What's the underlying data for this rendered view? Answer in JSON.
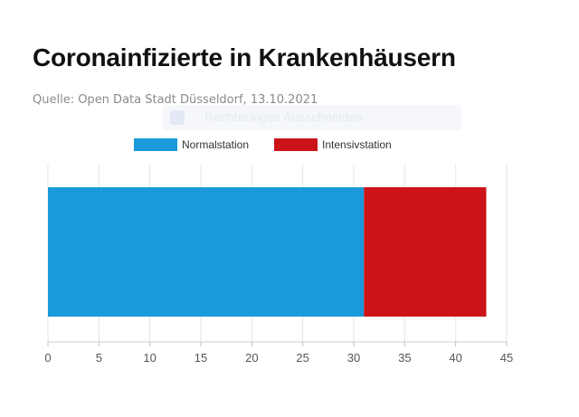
{
  "header": {
    "title": "Coronainfizierte in Krankenhäusern",
    "source": "Quelle: Open Data Stadt Düsseldorf, 13.10.2021",
    "overlay_label": "Rechteckiges Ausschneiden"
  },
  "chart_data": {
    "type": "bar",
    "orientation": "horizontal",
    "stacked": true,
    "categories": [
      ""
    ],
    "series": [
      {
        "name": "Normalstation",
        "values": [
          31
        ],
        "color": "#1a9ad9"
      },
      {
        "name": "Intensivstation",
        "values": [
          12
        ],
        "color": "#cc1418"
      }
    ],
    "xlim": [
      0,
      45
    ],
    "xticks": [
      0,
      5,
      10,
      15,
      20,
      25,
      30,
      35,
      40,
      45
    ],
    "grid": true,
    "legend": "top-center",
    "title": "Coronainfizierte in Krankenhäusern",
    "xlabel": "",
    "ylabel": ""
  }
}
